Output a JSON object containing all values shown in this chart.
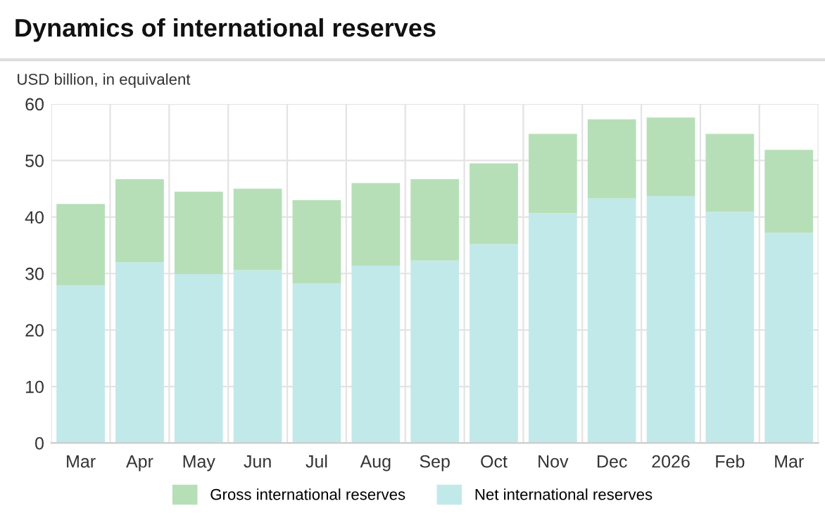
{
  "chart_data": {
    "type": "bar",
    "title": "Dynamics of international reserves",
    "ylabel": "USD billion, in equivalent",
    "categories": [
      "Mar",
      "Apr",
      "May",
      "Jun",
      "Jul",
      "Aug",
      "Sep",
      "Oct",
      "Nov",
      "Dec",
      "2026",
      "Feb",
      "Mar"
    ],
    "stacked": true,
    "series": [
      {
        "name": "Net international reserves",
        "color": "#c2e9e9",
        "values": [
          27.9,
          32.0,
          29.9,
          30.6,
          28.3,
          31.4,
          32.3,
          35.2,
          40.7,
          43.3,
          43.7,
          40.9,
          37.2
        ]
      },
      {
        "name": "Gross international reserves",
        "color": "#b6dfb8",
        "values": [
          14.4,
          14.7,
          14.6,
          14.4,
          14.7,
          14.6,
          14.4,
          14.3,
          14.0,
          14.0,
          13.9,
          13.8,
          14.7
        ]
      }
    ],
    "ylim": [
      0,
      60
    ],
    "yticks": [
      0,
      10,
      20,
      30,
      40,
      50,
      60
    ],
    "grid": true,
    "legend": "bottom"
  }
}
